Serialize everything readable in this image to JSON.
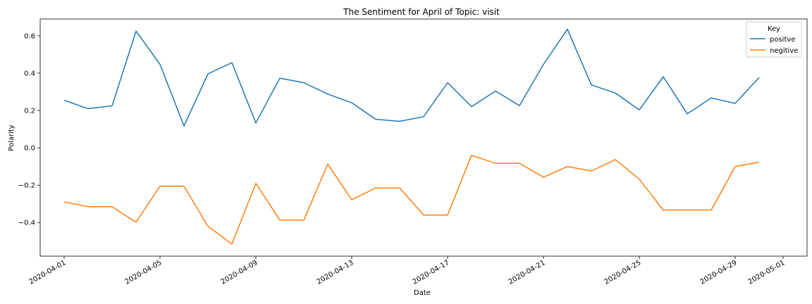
{
  "chart_data": {
    "type": "line",
    "title": "The Sentiment for April of Topic: visit",
    "xlabel": "Date",
    "ylabel": "Polarity",
    "x": [
      "2020-04-01",
      "2020-04-02",
      "2020-04-03",
      "2020-04-04",
      "2020-04-05",
      "2020-04-06",
      "2020-04-07",
      "2020-04-08",
      "2020-04-09",
      "2020-04-10",
      "2020-04-11",
      "2020-04-12",
      "2020-04-13",
      "2020-04-14",
      "2020-04-15",
      "2020-04-16",
      "2020-04-17",
      "2020-04-18",
      "2020-04-19",
      "2020-04-20",
      "2020-04-21",
      "2020-04-22",
      "2020-04-23",
      "2020-04-24",
      "2020-04-25",
      "2020-04-26",
      "2020-04-27",
      "2020-04-28",
      "2020-04-29",
      "2020-04-30"
    ],
    "xlim": [
      "2020-03-31",
      "2020-05-02"
    ],
    "ylim": [
      -0.58,
      0.69
    ],
    "x_ticks": [
      "2020-04-01",
      "2020-04-05",
      "2020-04-09",
      "2020-04-13",
      "2020-04-17",
      "2020-04-21",
      "2020-04-25",
      "2020-04-29",
      "2020-05-01"
    ],
    "y_ticks": [
      0.6,
      0.4,
      0.2,
      0.0,
      -0.2,
      -0.4
    ],
    "y_tick_labels": [
      "0.6",
      "0.4",
      "0.2",
      "0.0",
      "−0.2",
      "−0.4"
    ],
    "grid": false,
    "legend": {
      "title": "Key",
      "placement": "top-right"
    },
    "series": [
      {
        "name": "positve",
        "color": "#1f77b4",
        "values": [
          0.255,
          0.21,
          0.225,
          0.625,
          0.447,
          0.117,
          0.396,
          0.456,
          0.133,
          0.373,
          0.349,
          0.288,
          0.241,
          0.153,
          0.142,
          0.167,
          0.349,
          0.221,
          0.304,
          0.226,
          0.447,
          0.635,
          0.337,
          0.294,
          0.203,
          0.381,
          0.182,
          0.267,
          0.238,
          0.377
        ]
      },
      {
        "name": "negitive",
        "color": "#ff7f0e",
        "values": [
          -0.29,
          -0.315,
          -0.315,
          -0.398,
          -0.205,
          -0.205,
          -0.42,
          -0.515,
          -0.19,
          -0.387,
          -0.387,
          -0.087,
          -0.278,
          -0.215,
          -0.215,
          -0.36,
          -0.36,
          -0.04,
          -0.083,
          -0.083,
          -0.157,
          -0.1,
          -0.124,
          -0.063,
          -0.168,
          -0.333,
          -0.333,
          -0.333,
          -0.1,
          -0.077
        ]
      }
    ]
  }
}
